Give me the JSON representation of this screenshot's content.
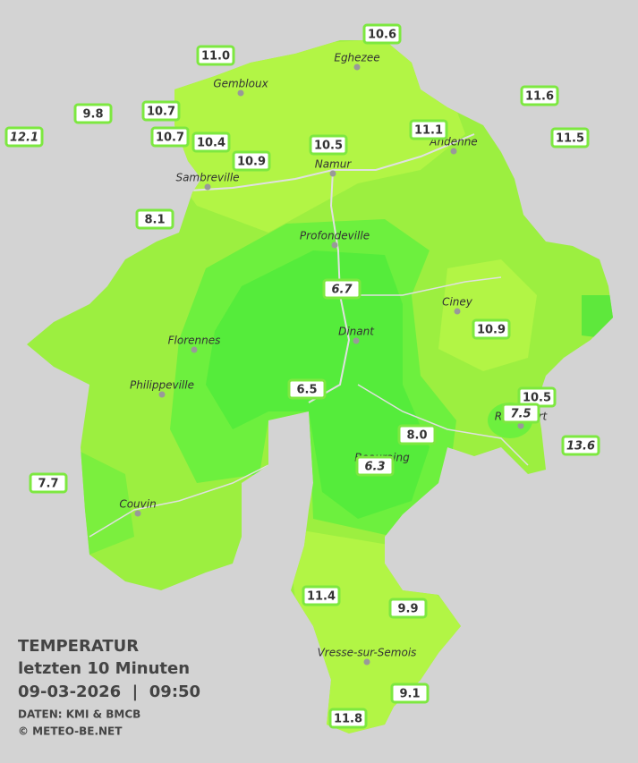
{
  "title": "TEMPERATUR",
  "subtitle": "letzten 10 Minuten",
  "timestamp": "09-03-2026  |  09:50",
  "source": "DATEN: KMI & BMCB",
  "copyright": "© METEO-BE.NET",
  "cities": [
    "Eghezee",
    "Gembloux",
    "Andenne",
    "Namur",
    "Sambreville",
    "Profondeville",
    "Ciney",
    "Dinant",
    "Florennes",
    "Philippeville",
    "Beauraing",
    "Rochefort",
    "Couvin",
    "Vresse-sur-Semois"
  ],
  "stations": [
    {
      "value": 10.6
    },
    {
      "value": 11.0,
      "label": "11.0"
    },
    {
      "value": 9.8
    },
    {
      "value": 10.7
    },
    {
      "value": 10.7
    },
    {
      "value": 10.4
    },
    {
      "value": 10.9
    },
    {
      "value": 10.5
    },
    {
      "value": 11.1
    },
    {
      "value": 11.6
    },
    {
      "value": 11.5
    },
    {
      "value": 12.1,
      "italic": true
    },
    {
      "value": 8.1
    },
    {
      "value": 6.7,
      "italic": true
    },
    {
      "value": 10.9
    },
    {
      "value": 6.5
    },
    {
      "value": 10.5
    },
    {
      "value": 7.5,
      "italic": true
    },
    {
      "value": 8.0,
      "label": "8.0"
    },
    {
      "value": 6.3,
      "italic": true
    },
    {
      "value": 13.6,
      "italic": true
    },
    {
      "value": 7.7
    },
    {
      "value": 11.4
    },
    {
      "value": 9.9
    },
    {
      "value": 9.1
    },
    {
      "value": 11.8
    }
  ]
}
